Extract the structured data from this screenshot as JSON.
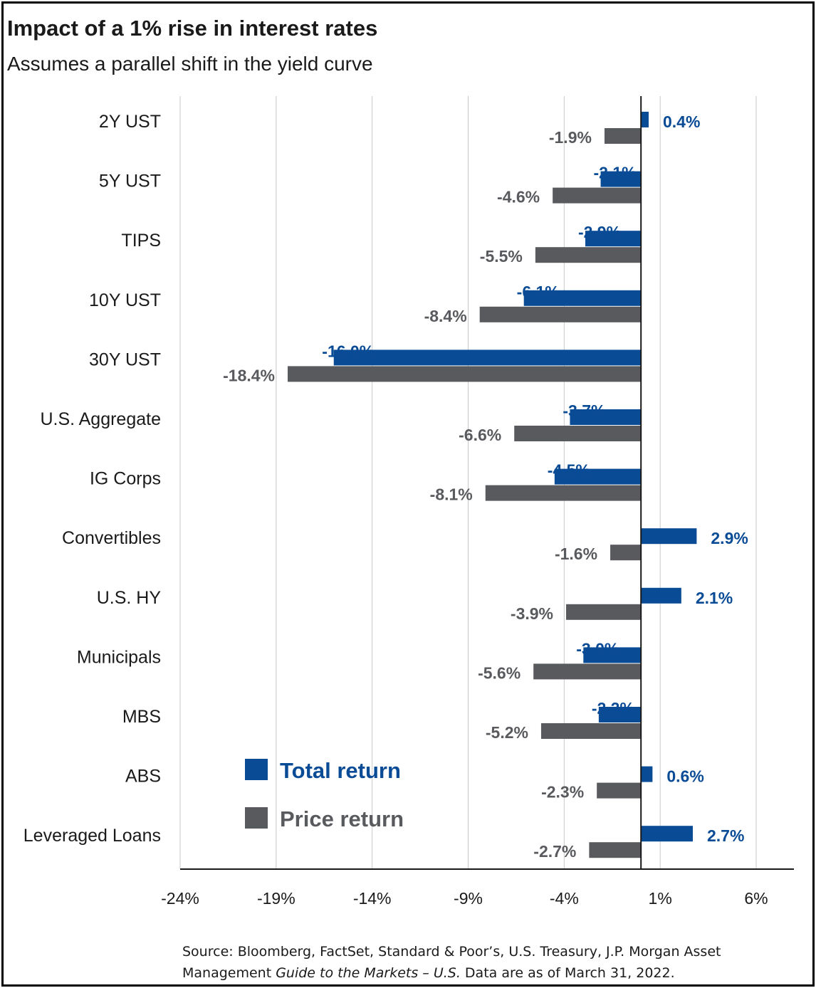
{
  "title": "Impact of a 1% rise in interest rates",
  "subtitle": "Assumes a parallel shift in the yield curve",
  "source": {
    "line1": "Source: Bloomberg, FactSet, Standard & Poor’s, U.S. Treasury, J.P. Morgan Asset",
    "line2_pre": "Management ",
    "line2_italic": "Guide to the Markets – U.S.",
    "line2_post": " Data are as of March 31, 2022."
  },
  "colors": {
    "total": "#0a4b96",
    "price": "#585a5e",
    "grid": "#c8c8c8",
    "axis": "#1a1a1a"
  },
  "chart_data": {
    "type": "bar",
    "orientation": "horizontal",
    "categories": [
      "2Y UST",
      "5Y UST",
      "TIPS",
      "10Y UST",
      "30Y UST",
      "U.S. Aggregate",
      "IG Corps",
      "Convertibles",
      "U.S. HY",
      "Municipals",
      "MBS",
      "ABS",
      "Leveraged Loans"
    ],
    "series": [
      {
        "name": "Total return",
        "values": [
          0.4,
          -2.1,
          -2.9,
          -6.1,
          -16.0,
          -3.7,
          -4.5,
          2.9,
          2.1,
          -3.0,
          -2.2,
          0.6,
          2.7
        ]
      },
      {
        "name": "Price return",
        "values": [
          -1.9,
          -4.6,
          -5.5,
          -8.4,
          -18.4,
          -6.6,
          -8.1,
          -1.6,
          -3.9,
          -5.6,
          -5.2,
          -2.3,
          -2.7
        ]
      }
    ],
    "xlim": [
      -24,
      8
    ],
    "xticks": [
      -24,
      -19,
      -14,
      -9,
      -4,
      1,
      6
    ],
    "xtick_labels": [
      "-24%",
      "-19%",
      "-14%",
      "-9%",
      "-4%",
      "1%",
      "6%"
    ],
    "grid": true,
    "legend_position": "lower-left"
  }
}
